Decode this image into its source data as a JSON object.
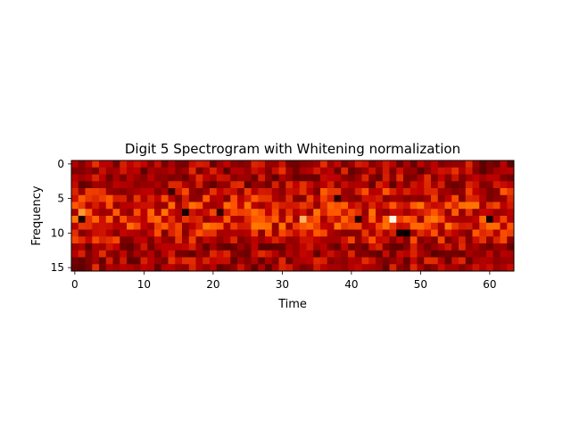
{
  "chart_data": {
    "type": "heatmap",
    "title": "Digit 5 Spectrogram with Whitening normalization",
    "xlabel": "Time",
    "ylabel": "Frequency",
    "rows": 16,
    "cols": 64,
    "xticks": [
      0,
      10,
      20,
      30,
      40,
      50,
      60
    ],
    "yticks": [
      0,
      5,
      10,
      15
    ],
    "colormap": "gist_heat",
    "y_origin": "top",
    "value_range": [
      0,
      1
    ],
    "notable_cells": [
      {
        "time": 46,
        "frequency": 8,
        "value": 0.98
      },
      {
        "time": 33,
        "frequency": 8,
        "value": 0.85
      },
      {
        "time": 1,
        "frequency": 7,
        "value": 0.8
      },
      {
        "time": 16,
        "frequency": 7,
        "value": 0.05
      },
      {
        "time": 1,
        "frequency": 8,
        "value": 0.08
      },
      {
        "time": 38,
        "frequency": 5,
        "value": 0.12
      },
      {
        "time": 41,
        "frequency": 8,
        "value": 0.1
      },
      {
        "time": 47,
        "frequency": 10,
        "value": 0.05
      },
      {
        "time": 48,
        "frequency": 10,
        "value": 0.02
      },
      {
        "time": 60,
        "frequency": 8,
        "value": 0.05
      },
      {
        "time": 21,
        "frequency": 7,
        "value": 0.12
      },
      {
        "time": 14,
        "frequency": 4,
        "value": 0.15
      }
    ]
  }
}
